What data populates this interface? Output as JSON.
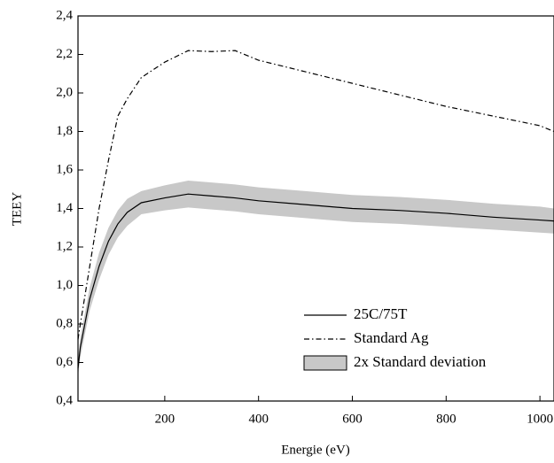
{
  "chart_data": {
    "type": "line",
    "x_label": "Energie (eV)",
    "y_label": "TEEY",
    "x": [
      15,
      20,
      40,
      60,
      80,
      100,
      120,
      150,
      200,
      250,
      300,
      350,
      400,
      500,
      600,
      700,
      800,
      900,
      1000,
      1030
    ],
    "series": [
      {
        "name": "25C/75T",
        "color": "#000000",
        "dash": "solid",
        "values": [
          0.57,
          0.68,
          0.93,
          1.1,
          1.23,
          1.32,
          1.38,
          1.43,
          1.455,
          1.475,
          1.465,
          1.455,
          1.44,
          1.42,
          1.4,
          1.39,
          1.375,
          1.355,
          1.34,
          1.335
        ]
      },
      {
        "name": "Standard Ag",
        "color": "#000000",
        "dash": "dashdot",
        "values": [
          0.72,
          0.8,
          1.1,
          1.4,
          1.65,
          1.88,
          1.97,
          2.08,
          2.16,
          2.22,
          2.215,
          2.22,
          2.17,
          2.11,
          2.05,
          1.99,
          1.93,
          1.88,
          1.83,
          1.8
        ]
      },
      {
        "name": "2x Standard deviation",
        "color": "#c8c8c8",
        "dash": "band",
        "lower": [
          0.53,
          0.63,
          0.87,
          1.03,
          1.16,
          1.25,
          1.31,
          1.37,
          1.39,
          1.405,
          1.395,
          1.385,
          1.37,
          1.35,
          1.33,
          1.32,
          1.305,
          1.29,
          1.275,
          1.27
        ],
        "upper": [
          0.61,
          0.73,
          0.99,
          1.17,
          1.3,
          1.39,
          1.45,
          1.49,
          1.52,
          1.545,
          1.535,
          1.525,
          1.51,
          1.49,
          1.47,
          1.46,
          1.445,
          1.425,
          1.41,
          1.4
        ]
      }
    ],
    "xlim": [
      15,
      1030
    ],
    "xticks": [
      200,
      400,
      600,
      800,
      1000
    ],
    "ylim": [
      0.4,
      2.4
    ],
    "yticks": [
      {
        "value": 0.4,
        "label": "0,4"
      },
      {
        "value": 0.6,
        "label": "0,6"
      },
      {
        "value": 0.8,
        "label": "0,8"
      },
      {
        "value": 1.0,
        "label": "1,0"
      },
      {
        "value": 1.2,
        "label": "1,2"
      },
      {
        "value": 1.4,
        "label": "1,4"
      },
      {
        "value": 1.6,
        "label": "1,6"
      },
      {
        "value": 1.8,
        "label": "1,8"
      },
      {
        "value": 2.0,
        "label": "2,0"
      },
      {
        "value": 2.2,
        "label": "2,2"
      },
      {
        "value": 2.4,
        "label": "2,4"
      }
    ],
    "grid": false,
    "legend": "lower right"
  }
}
